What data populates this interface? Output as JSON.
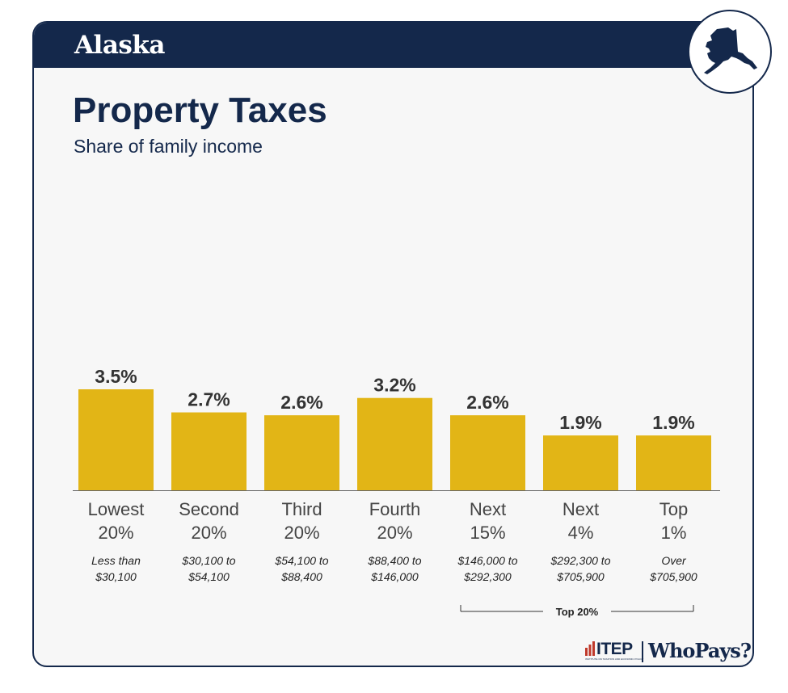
{
  "header": {
    "state": "Alaska",
    "state_icon": "alaska-state-outline-icon"
  },
  "colors": {
    "navy": "#14284b",
    "bar": "#e2b516",
    "background": "#f7f7f7"
  },
  "chart_data": {
    "type": "bar",
    "title": "Property Taxes",
    "subtitle": "Share of family income",
    "categories": [
      {
        "group": "Lowest",
        "share": "20%",
        "range_line1": "Less than",
        "range_line2": "$30,100"
      },
      {
        "group": "Second",
        "share": "20%",
        "range_line1": "$30,100 to",
        "range_line2": "$54,100"
      },
      {
        "group": "Third",
        "share": "20%",
        "range_line1": "$54,100 to",
        "range_line2": "$88,400"
      },
      {
        "group": "Fourth",
        "share": "20%",
        "range_line1": "$88,400 to",
        "range_line2": "$146,000"
      },
      {
        "group": "Next",
        "share": "15%",
        "range_line1": "$146,000 to",
        "range_line2": "$292,300"
      },
      {
        "group": "Next",
        "share": "4%",
        "range_line1": "$292,300 to",
        "range_line2": "$705,900"
      },
      {
        "group": "Top",
        "share": "1%",
        "range_line1": "Over",
        "range_line2": "$705,900"
      }
    ],
    "values": [
      3.5,
      2.7,
      2.6,
      3.2,
      2.6,
      1.9,
      1.9
    ],
    "value_labels": [
      "3.5%",
      "2.7%",
      "2.6%",
      "3.2%",
      "2.6%",
      "1.9%",
      "1.9%"
    ],
    "ylim": [
      0,
      3.5
    ],
    "bracket": {
      "label": "Top 20%",
      "from_index": 4,
      "to_index": 6
    }
  },
  "footer": {
    "itep": "ITEP",
    "itep_sub": "INSTITUTE ON TAXATION AND ECONOMIC POLICY",
    "whopays": "WhoPays?"
  }
}
